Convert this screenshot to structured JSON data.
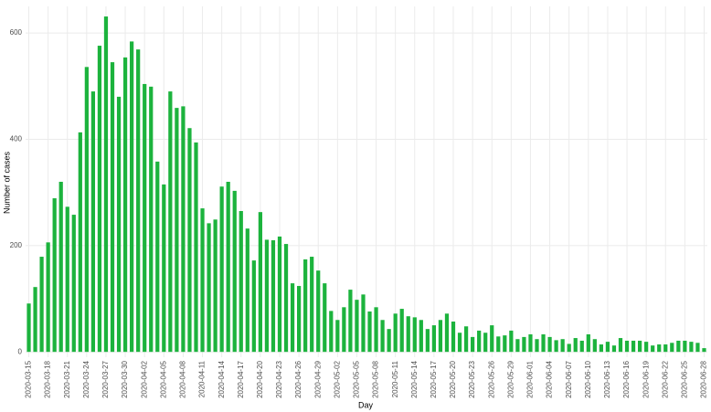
{
  "chart_data": {
    "type": "bar",
    "x_label": "Day",
    "y_label": "Number of cases",
    "categories": [
      "2020-03-15",
      null,
      null,
      "2020-03-18",
      null,
      null,
      "2020-03-21",
      null,
      null,
      "2020-03-24",
      null,
      null,
      "2020-03-27",
      null,
      null,
      "2020-03-30",
      null,
      null,
      "2020-04-02",
      null,
      null,
      "2020-04-05",
      null,
      null,
      "2020-04-08",
      null,
      null,
      "2020-04-11",
      null,
      null,
      "2020-04-14",
      null,
      null,
      "2020-04-17",
      null,
      null,
      "2020-04-20",
      null,
      null,
      "2020-04-23",
      null,
      null,
      "2020-04-26",
      null,
      null,
      "2020-04-29",
      null,
      null,
      "2020-05-02",
      null,
      null,
      "2020-05-05",
      null,
      null,
      "2020-05-08",
      null,
      null,
      "2020-05-11",
      null,
      null,
      "2020-05-14",
      null,
      null,
      "2020-05-17",
      null,
      null,
      "2020-05-20",
      null,
      null,
      "2020-05-23",
      null,
      null,
      "2020-05-26",
      null,
      null,
      "2020-05-29",
      null,
      null,
      "2020-06-01",
      null,
      null,
      "2020-06-04",
      null,
      null,
      "2020-06-07",
      null,
      null,
      "2020-06-10",
      null,
      null,
      "2020-06-13",
      null,
      null,
      "2020-06-16",
      null,
      null,
      "2020-06-19",
      null,
      null,
      "2020-06-22",
      null,
      null,
      "2020-06-25",
      null,
      null,
      "2020-06-28"
    ],
    "values": [
      91,
      122,
      179,
      206,
      289,
      320,
      273,
      258,
      413,
      536,
      490,
      576,
      631,
      545,
      480,
      554,
      584,
      569,
      504,
      499,
      358,
      315,
      490,
      459,
      462,
      421,
      394,
      270,
      242,
      249,
      311,
      320,
      303,
      265,
      232,
      172,
      263,
      211,
      210,
      217,
      203,
      129,
      124,
      174,
      179,
      153,
      129,
      77,
      60,
      84,
      117,
      98,
      108,
      76,
      84,
      60,
      43,
      72,
      81,
      67,
      65,
      60,
      43,
      50,
      60,
      72,
      57,
      36,
      48,
      28,
      40,
      36,
      50,
      29,
      31,
      40,
      24,
      28,
      33,
      24,
      33,
      28,
      22,
      24,
      15,
      26,
      21,
      33,
      24,
      14,
      19,
      12,
      26,
      21,
      21,
      21,
      19,
      12,
      14,
      14,
      17,
      21,
      21,
      19,
      17,
      7
    ],
    "color": "#1cb33d",
    "ylim": [
      -10,
      650
    ],
    "yticks": [
      0,
      200,
      400,
      600
    ],
    "grid": true
  }
}
